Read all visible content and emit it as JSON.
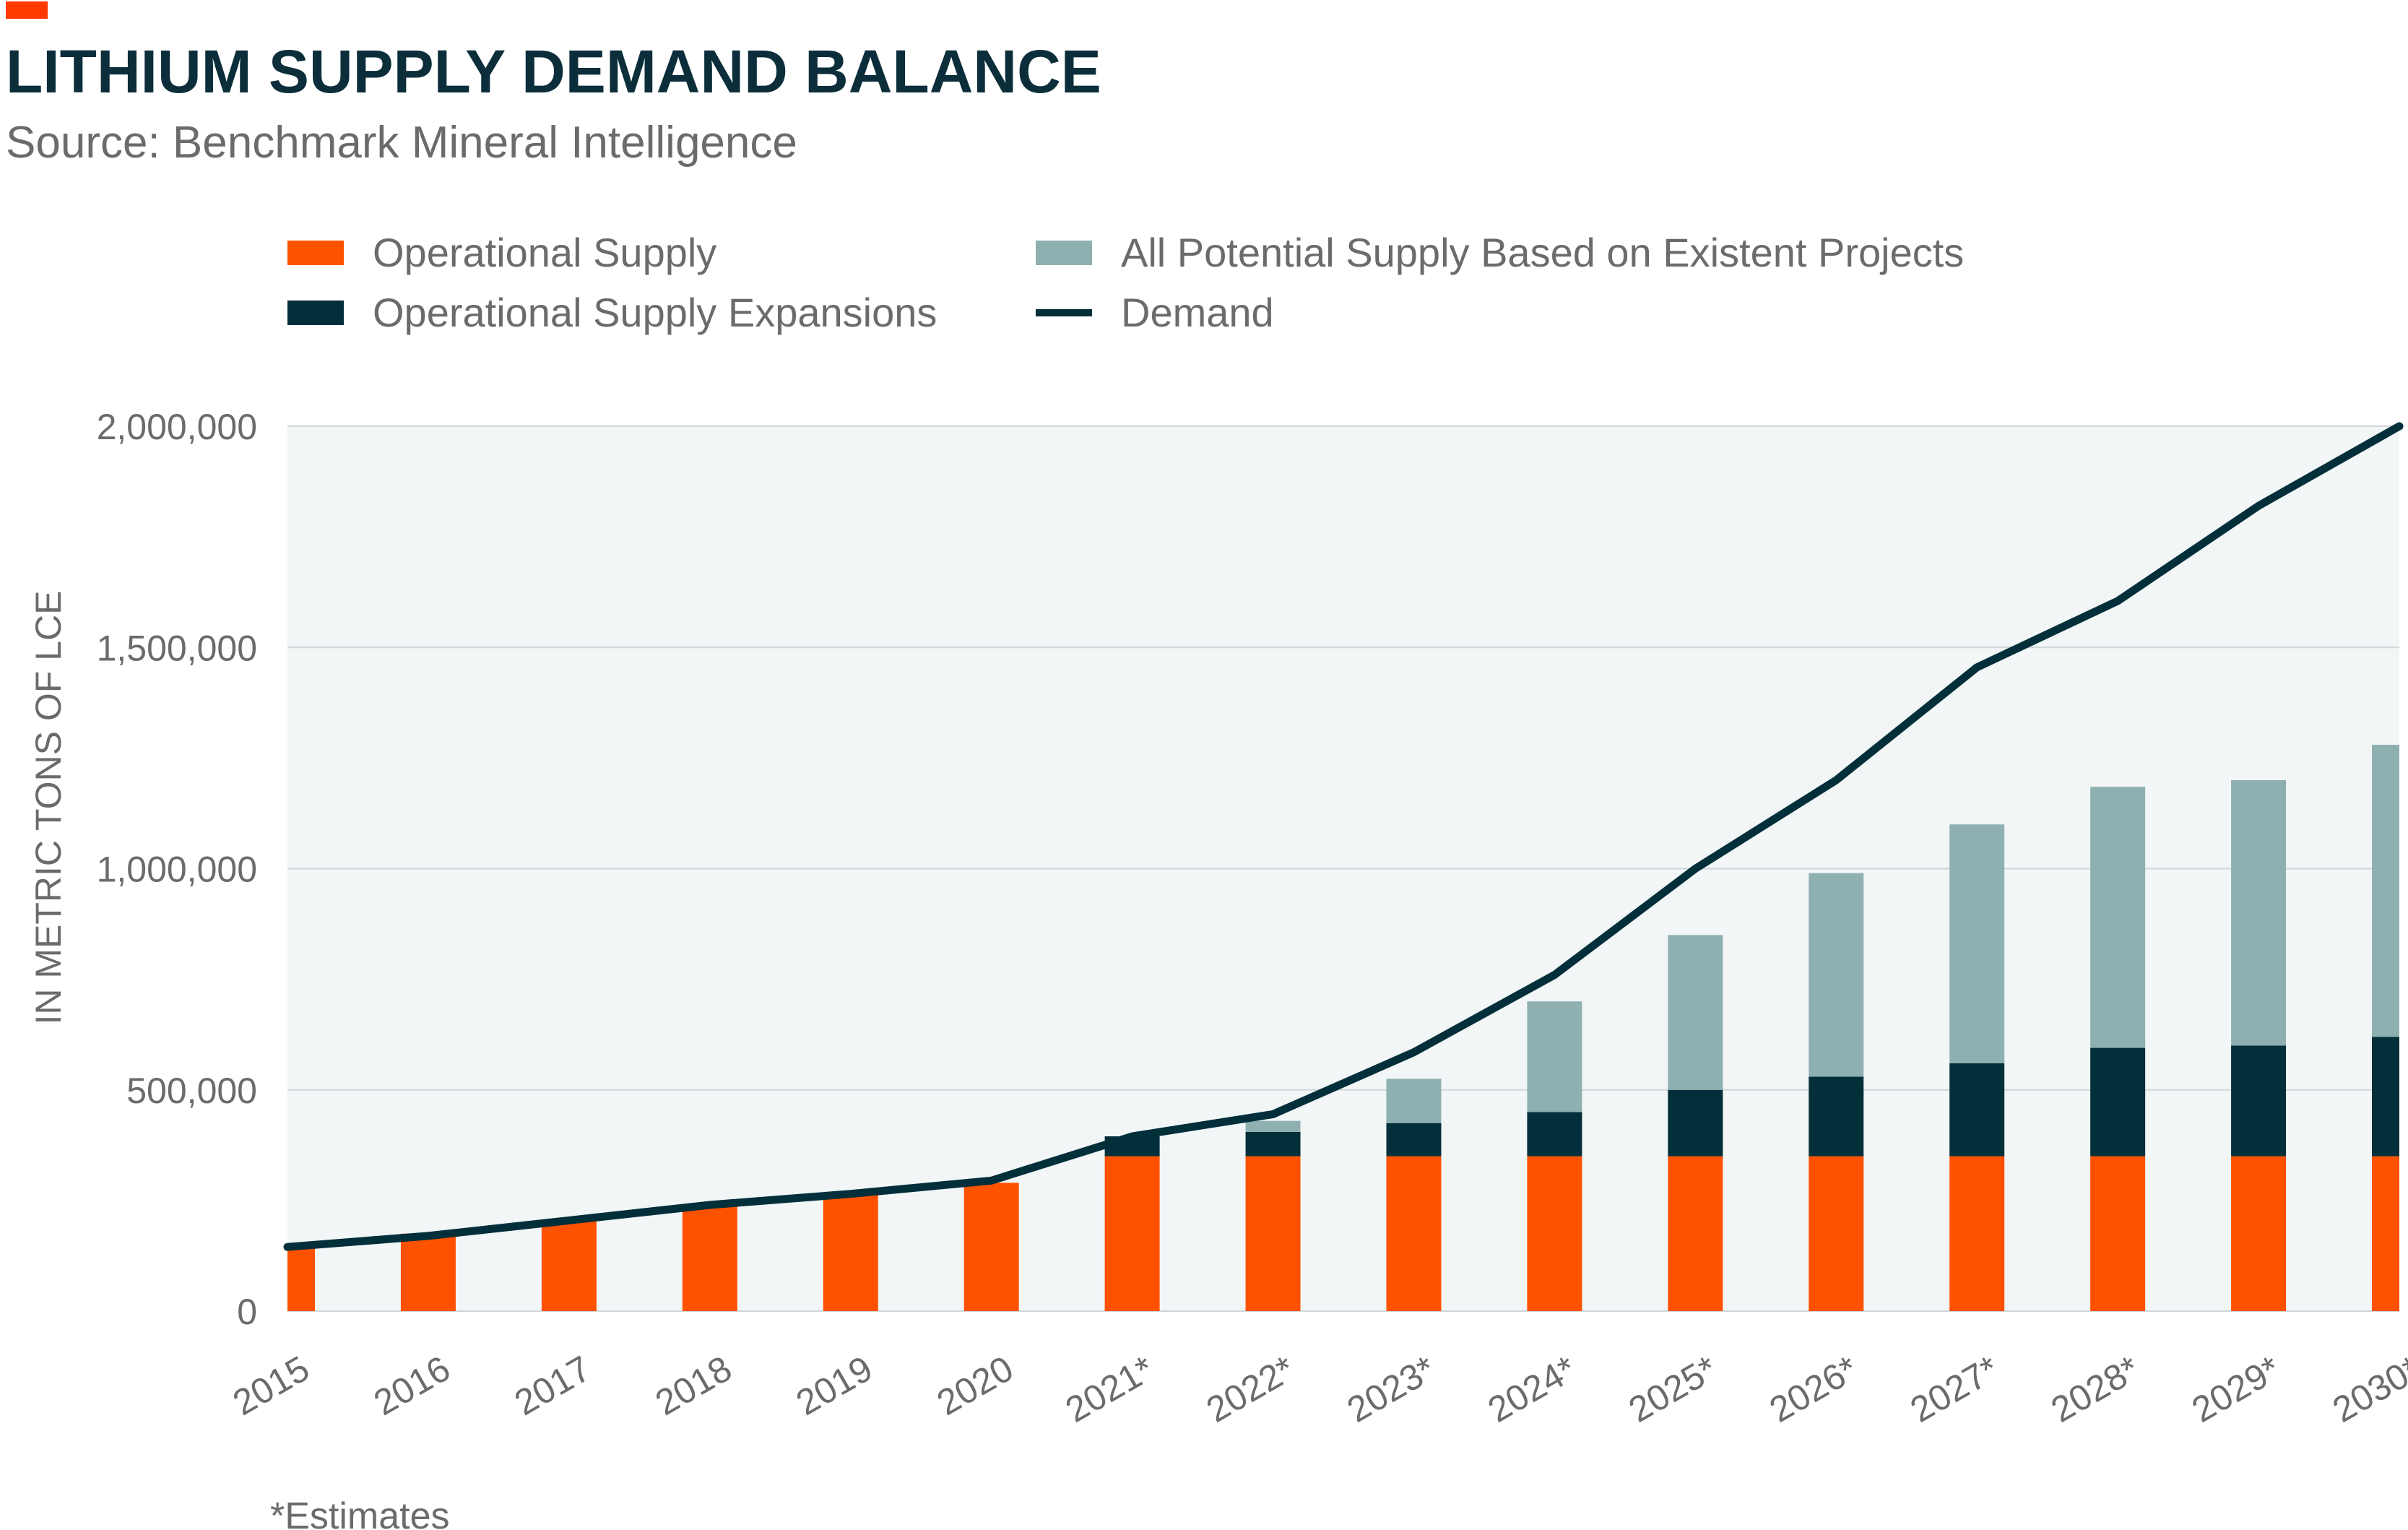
{
  "header": {
    "title": "LITHIUM SUPPLY DEMAND BALANCE",
    "subtitle": "Source: Benchmark Mineral Intelligence"
  },
  "footnote": "*Estimates",
  "colors": {
    "operational": "#ff5200",
    "expansions": "#022f3a",
    "potential": "#8fb0b0",
    "demand": "#022f3a",
    "title": "#0c2e3b",
    "text": "#6b6b6b",
    "plot_bg": "#f2f6f7",
    "grid": "#cfd6d8",
    "accent_mark": "#ff3a00"
  },
  "chart_data": {
    "type": "bar",
    "stacked": true,
    "title": "LITHIUM SUPPLY DEMAND BALANCE",
    "subtitle": "Source: Benchmark Mineral Intelligence",
    "ylabel": "IN METRIC TONS OF LCE",
    "xlabel": "",
    "ylim": [
      0,
      2000000
    ],
    "yticks": [
      0,
      500000,
      1000000,
      1500000,
      2000000
    ],
    "ytick_labels": [
      "0",
      "500,000",
      "1,000,000",
      "1,500,000",
      "2,000,000"
    ],
    "grid": true,
    "legend_position": "top",
    "categories": [
      "2015",
      "2016",
      "2017",
      "2018",
      "2019",
      "2020",
      "2021*",
      "2022*",
      "2023*",
      "2024*",
      "2025*",
      "2026*",
      "2027*",
      "2028*",
      "2029*",
      "2030*"
    ],
    "series": [
      {
        "name": "Operational Supply",
        "kind": "bar",
        "color": "#ff5200",
        "values": [
          150000,
          175000,
          205000,
          240000,
          265000,
          290000,
          350000,
          350000,
          350000,
          350000,
          350000,
          350000,
          350000,
          350000,
          350000,
          350000
        ]
      },
      {
        "name": "Operational Supply Expansions",
        "kind": "bar",
        "color": "#022f3a",
        "values": [
          0,
          0,
          0,
          0,
          0,
          0,
          45000,
          55000,
          75000,
          100000,
          150000,
          180000,
          210000,
          245000,
          250000,
          270000
        ]
      },
      {
        "name": "All Potential Supply Based on Existent Projects",
        "kind": "bar",
        "color": "#8fb0b0",
        "values": [
          0,
          0,
          0,
          0,
          0,
          0,
          0,
          25000,
          100000,
          250000,
          350000,
          460000,
          540000,
          590000,
          600000,
          660000
        ]
      },
      {
        "name": "Demand",
        "kind": "line",
        "color": "#022f3a",
        "values": [
          145000,
          170000,
          205000,
          240000,
          265000,
          295000,
          395000,
          445000,
          585000,
          760000,
          1000000,
          1200000,
          1455000,
          1605000,
          1820000,
          2000000
        ]
      }
    ]
  }
}
